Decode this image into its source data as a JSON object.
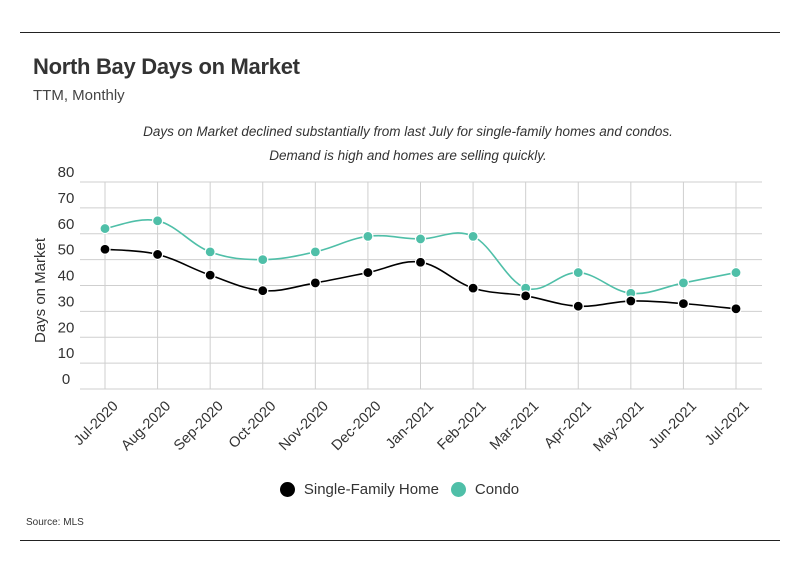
{
  "header": {
    "title": "North Bay Days on Market",
    "subtitle": "TTM, Monthly",
    "caption": "Days on Market declined substantially from last July for single-family homes and condos. Demand is high and homes are selling quickly."
  },
  "footer": {
    "source": "Source:  MLS"
  },
  "chart_data": {
    "type": "line",
    "title": "North Bay Days on Market",
    "subtitle": "TTM, Monthly",
    "xlabel": "",
    "ylabel": "Days on Market",
    "ylim": [
      0,
      80
    ],
    "yticks": [
      0,
      10,
      20,
      30,
      40,
      50,
      60,
      70,
      80
    ],
    "grid": true,
    "legend_position": "bottom",
    "categories": [
      "Jul-2020",
      "Aug-2020",
      "Sep-2020",
      "Oct-2020",
      "Nov-2020",
      "Dec-2020",
      "Jan-2021",
      "Feb-2021",
      "Mar-2021",
      "Apr-2021",
      "May-2021",
      "Jun-2021",
      "Jul-2021"
    ],
    "series": [
      {
        "name": "Single-Family Home",
        "color": "#000000",
        "values": [
          54,
          52,
          44,
          38,
          41,
          45,
          49,
          39,
          36,
          32,
          34,
          33,
          31
        ]
      },
      {
        "name": "Condo",
        "color": "#4fbfa8",
        "values": [
          62,
          65,
          53,
          50,
          53,
          59,
          58,
          59,
          39,
          45,
          37,
          41,
          45
        ]
      }
    ]
  }
}
